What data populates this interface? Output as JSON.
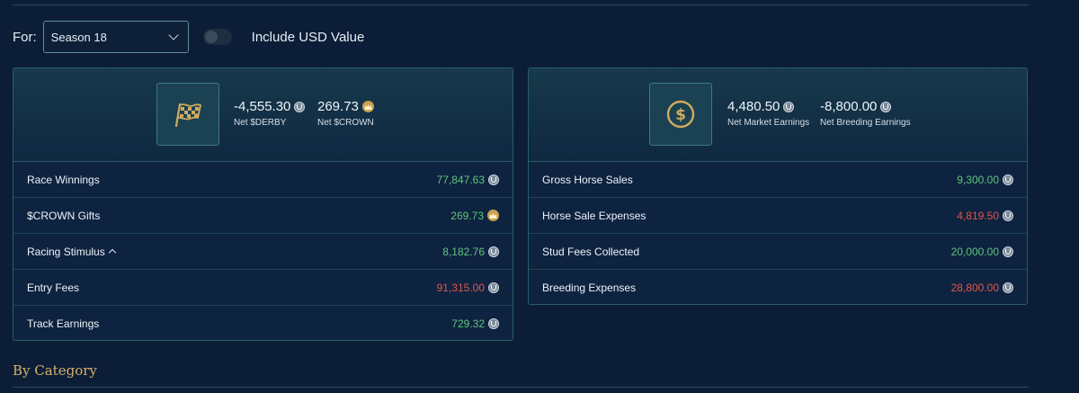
{
  "filter": {
    "for_label": "For:",
    "season_value": "Season 18",
    "usd_toggle_label": "Include USD Value",
    "usd_toggle_on": false
  },
  "racing_card": {
    "icon": "checkered-flag-icon",
    "net_derby_value": "-4,555.30",
    "net_derby_label": "Net $DERBY",
    "net_crown_value": "269.73",
    "net_crown_label": "Net $CROWN",
    "rows": [
      {
        "label": "Race Winnings",
        "value": "77,847.63",
        "sign": "positive",
        "currency": "derby"
      },
      {
        "label": "$CROWN Gifts",
        "value": "269.73",
        "sign": "positive",
        "currency": "crown"
      },
      {
        "label": "Racing Stimulus",
        "value": "8,182.76",
        "sign": "positive",
        "currency": "derby",
        "expandable": true
      },
      {
        "label": "Entry Fees",
        "value": "91,315.00",
        "sign": "negative",
        "currency": "derby"
      },
      {
        "label": "Track Earnings",
        "value": "729.32",
        "sign": "positive",
        "currency": "derby"
      }
    ]
  },
  "market_card": {
    "icon": "dollar-coin-icon",
    "net_market_value": "4,480.50",
    "net_market_label": "Net Market Earnings",
    "net_breeding_value": "-8,800.00",
    "net_breeding_label": "Net Breeding Earnings",
    "rows": [
      {
        "label": "Gross Horse Sales",
        "value": "9,300.00",
        "sign": "positive",
        "currency": "derby"
      },
      {
        "label": "Horse Sale Expenses",
        "value": "4,819.50",
        "sign": "negative",
        "currency": "derby"
      },
      {
        "label": "Stud Fees Collected",
        "value": "20,000.00",
        "sign": "positive",
        "currency": "derby"
      },
      {
        "label": "Breeding Expenses",
        "value": "28,800.00",
        "sign": "negative",
        "currency": "derby"
      }
    ]
  },
  "section": {
    "title": "By Category"
  },
  "colors": {
    "positive": "#5fc67a",
    "negative": "#e0554b",
    "accent": "#d7b06a",
    "background": "#0c1e37"
  }
}
